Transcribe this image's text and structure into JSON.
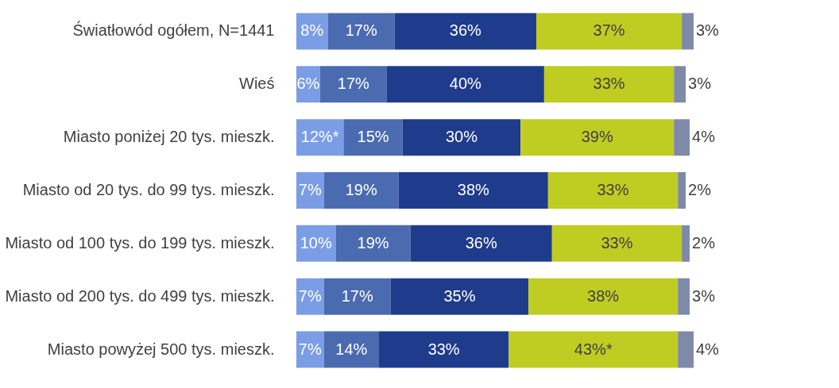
{
  "chart_data": {
    "type": "bar",
    "orientation": "horizontal",
    "stacked": true,
    "tick_labels": "y",
    "xlim": [
      0,
      101
    ],
    "categories": [
      "Światłowód ogółem, N=1441",
      "Wieś",
      "Miasto poniżej 20 tys. mieszk.",
      "Miasto od 20 tys. do 99 tys. mieszk.",
      "Miasto od 100 tys. do 199 tys. mieszk.",
      "Miasto od 200 tys. do 499 tys. mieszk.",
      "Miasto powyżej 500 tys. mieszk."
    ],
    "series": [
      {
        "color": "#7a9de6",
        "values": [
          8,
          6,
          12,
          7,
          10,
          7,
          7
        ],
        "value_labels": [
          "8%",
          "6%",
          "12%*",
          "7%",
          "10%",
          "7%",
          "7%"
        ]
      },
      {
        "color": "#4a6bb0",
        "values": [
          17,
          17,
          15,
          19,
          19,
          17,
          14
        ],
        "value_labels": [
          "17%",
          "17%",
          "15%",
          "19%",
          "19%",
          "17%",
          "14%"
        ]
      },
      {
        "color": "#1f3b8c",
        "values": [
          36,
          40,
          30,
          38,
          36,
          35,
          33
        ],
        "value_labels": [
          "36%",
          "40%",
          "30%",
          "38%",
          "36%",
          "35%",
          "33%"
        ]
      },
      {
        "color": "#bfcc22",
        "values": [
          37,
          33,
          39,
          33,
          33,
          38,
          43
        ],
        "value_labels": [
          "37%",
          "33%",
          "39%",
          "33%",
          "33%",
          "38%",
          "43%*"
        ]
      },
      {
        "color": "#7f8aa8",
        "values": [
          3,
          3,
          4,
          2,
          2,
          3,
          4
        ],
        "value_labels": [
          "3%",
          "3%",
          "4%",
          "2%",
          "2%",
          "3%",
          "4%"
        ]
      }
    ]
  }
}
